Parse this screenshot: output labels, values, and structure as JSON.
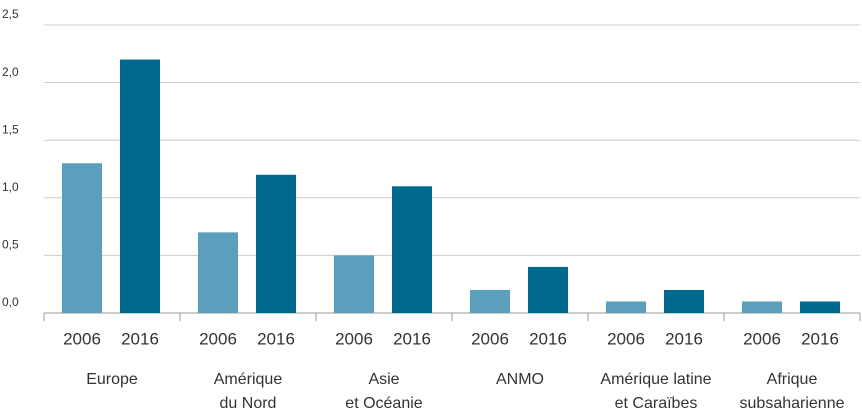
{
  "chart_data": {
    "type": "bar",
    "categories": [
      "Europe",
      "Amérique\ndu Nord",
      "Asie\net Océanie",
      "ANMO",
      "Amérique latine\net Caraïbes",
      "Afrique\nsubsaharienne"
    ],
    "series": [
      {
        "name": "2006",
        "color": "#5b9fbd",
        "values": [
          1.3,
          0.7,
          0.5,
          0.2,
          0.1,
          0.1
        ]
      },
      {
        "name": "2016",
        "color": "#006990",
        "values": [
          2.2,
          1.2,
          1.1,
          0.4,
          0.2,
          0.1
        ]
      }
    ],
    "ylim": [
      0,
      2.5
    ],
    "yticks": [
      {
        "value": 0,
        "label": "0,0"
      },
      {
        "value": 0.5,
        "label": "0,5"
      },
      {
        "value": 1,
        "label": "1,0"
      },
      {
        "value": 1.5,
        "label": "1,5"
      },
      {
        "value": 2,
        "label": "2,0"
      },
      {
        "value": 2.5,
        "label": "2,5"
      }
    ],
    "grid": true
  }
}
